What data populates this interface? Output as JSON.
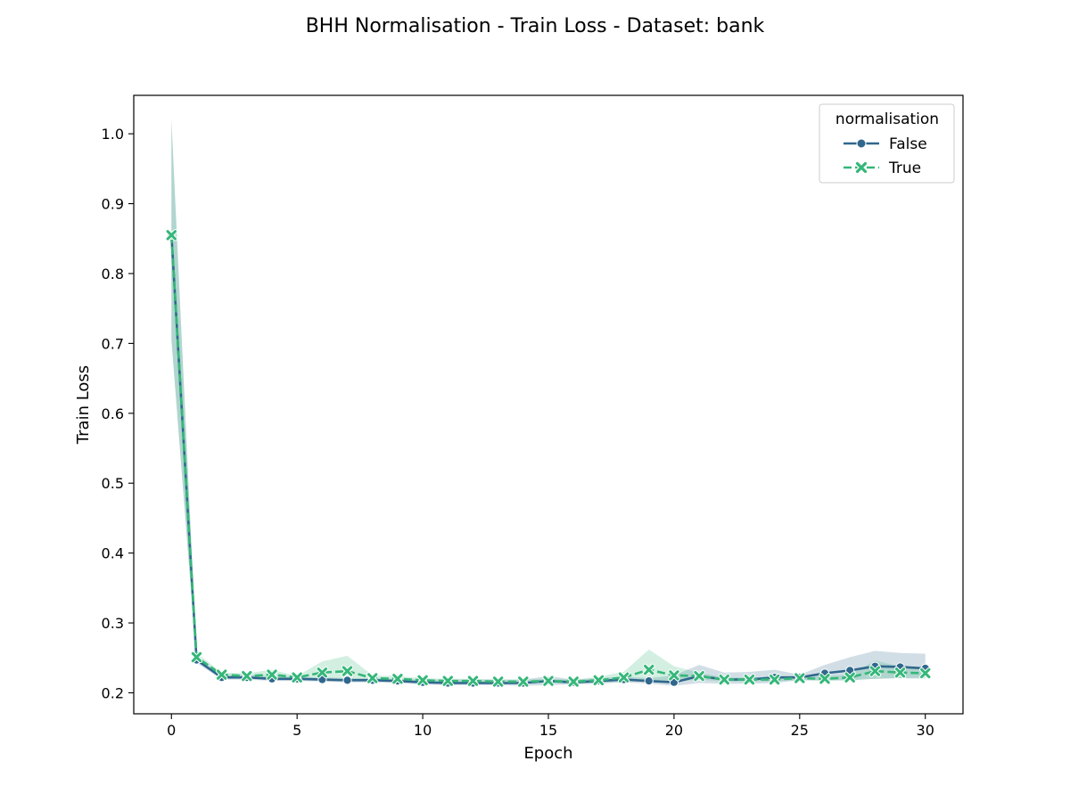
{
  "chart_data": {
    "type": "line",
    "title": "BHH Normalisation - Train Loss - Dataset: bank",
    "xlabel": "Epoch",
    "ylabel": "Train Loss",
    "xlim": [
      -1.5,
      31.5
    ],
    "ylim": [
      0.17,
      1.055
    ],
    "xticks": [
      0,
      5,
      10,
      15,
      20,
      25,
      30
    ],
    "yticks": [
      0.2,
      0.3,
      0.4,
      0.5,
      0.6,
      0.7,
      0.8,
      0.9,
      1.0
    ],
    "grid": false,
    "legend": {
      "title": "normalisation",
      "position": "top-right"
    },
    "x": [
      0,
      1,
      2,
      3,
      4,
      5,
      6,
      7,
      8,
      9,
      10,
      11,
      12,
      13,
      14,
      15,
      16,
      17,
      18,
      19,
      20,
      21,
      22,
      23,
      24,
      25,
      26,
      27,
      28,
      29,
      30
    ],
    "series": [
      {
        "name": "False",
        "color": "#30678d",
        "marker": "circle",
        "dash": "solid",
        "values": [
          0.855,
          0.247,
          0.222,
          0.222,
          0.22,
          0.22,
          0.219,
          0.218,
          0.218,
          0.217,
          0.215,
          0.214,
          0.214,
          0.214,
          0.214,
          0.217,
          0.215,
          0.217,
          0.219,
          0.217,
          0.215,
          0.224,
          0.219,
          0.219,
          0.222,
          0.222,
          0.228,
          0.232,
          0.238,
          0.237,
          0.235
        ],
        "band_upper": [
          1.02,
          0.252,
          0.226,
          0.226,
          0.224,
          0.223,
          0.222,
          0.221,
          0.221,
          0.22,
          0.219,
          0.219,
          0.219,
          0.219,
          0.219,
          0.224,
          0.219,
          0.221,
          0.223,
          0.221,
          0.225,
          0.24,
          0.229,
          0.23,
          0.233,
          0.226,
          0.24,
          0.251,
          0.26,
          0.257,
          0.256
        ],
        "band_lower": [
          0.705,
          0.243,
          0.219,
          0.219,
          0.217,
          0.217,
          0.216,
          0.215,
          0.215,
          0.214,
          0.212,
          0.211,
          0.211,
          0.211,
          0.21,
          0.211,
          0.212,
          0.213,
          0.215,
          0.213,
          0.21,
          0.214,
          0.213,
          0.213,
          0.214,
          0.218,
          0.218,
          0.218,
          0.22,
          0.221,
          0.22
        ]
      },
      {
        "name": "True",
        "color": "#35b779",
        "marker": "x",
        "dash": "dashed",
        "values": [
          0.855,
          0.251,
          0.226,
          0.224,
          0.226,
          0.222,
          0.229,
          0.231,
          0.221,
          0.22,
          0.218,
          0.217,
          0.217,
          0.216,
          0.216,
          0.217,
          0.216,
          0.218,
          0.222,
          0.233,
          0.225,
          0.224,
          0.219,
          0.219,
          0.219,
          0.221,
          0.22,
          0.222,
          0.231,
          0.229,
          0.228
        ],
        "band_upper": [
          1.02,
          0.257,
          0.229,
          0.228,
          0.233,
          0.224,
          0.245,
          0.253,
          0.225,
          0.224,
          0.221,
          0.22,
          0.22,
          0.219,
          0.219,
          0.22,
          0.219,
          0.223,
          0.23,
          0.262,
          0.238,
          0.229,
          0.222,
          0.222,
          0.222,
          0.224,
          0.224,
          0.226,
          0.246,
          0.238,
          0.234
        ],
        "band_lower": [
          0.705,
          0.245,
          0.223,
          0.22,
          0.22,
          0.219,
          0.217,
          0.218,
          0.217,
          0.216,
          0.215,
          0.214,
          0.214,
          0.213,
          0.213,
          0.214,
          0.213,
          0.214,
          0.216,
          0.219,
          0.216,
          0.219,
          0.216,
          0.216,
          0.216,
          0.218,
          0.217,
          0.218,
          0.22,
          0.221,
          0.222
        ]
      }
    ]
  }
}
